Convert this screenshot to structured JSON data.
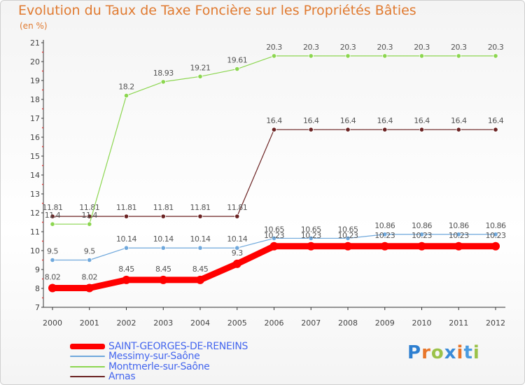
{
  "header": {
    "title": "Evolution du Taux de Taxe Foncière sur les Propriétés Bâties",
    "unit": "(en %)"
  },
  "logo": {
    "letters": [
      "P",
      "r",
      "o",
      "x",
      "i",
      "t",
      "i"
    ],
    "colors": [
      "#2e7fd0",
      "#e8762a",
      "#9bc24a",
      "#3a8bd8",
      "#e8762a",
      "#4a9be0",
      "#9bc24a"
    ]
  },
  "chart_data": {
    "type": "line",
    "title": "Evolution du Taux de Taxe Foncière sur les Propriétés Bâties",
    "ylabel": "(en %)",
    "xlabel": "",
    "x": [
      "2000",
      "2001",
      "2002",
      "2003",
      "2004",
      "2005",
      "2006",
      "2007",
      "2008",
      "2009",
      "2010",
      "2011",
      "2012"
    ],
    "ylim": [
      7,
      21
    ],
    "yticks": [
      "7",
      "8",
      "9",
      "10",
      "11",
      "12",
      "13",
      "14",
      "15",
      "16",
      "17",
      "18",
      "19",
      "20",
      "21"
    ],
    "series": [
      {
        "name": "Arnas",
        "color": "#6b2222",
        "values": [
          11.81,
          11.81,
          11.81,
          11.81,
          11.81,
          11.81,
          16.4,
          16.4,
          16.4,
          16.4,
          16.4,
          16.4,
          16.4
        ],
        "labels": [
          "11.81",
          "11.81",
          "11.81",
          "11.81",
          "11.81",
          "11.81",
          "16.4",
          "16.4",
          "16.4",
          "16.4",
          "16.4",
          "16.4",
          "16.4"
        ]
      },
      {
        "name": "Montmerle-sur-Saône",
        "color": "#8cd650",
        "values": [
          11.4,
          11.4,
          18.2,
          18.93,
          19.21,
          19.61,
          20.3,
          20.3,
          20.3,
          20.3,
          20.3,
          20.3,
          20.3
        ],
        "labels": [
          "11.4",
          "11.4",
          "18.2",
          "18.93",
          "19.21",
          "19.61",
          "20.3",
          "20.3",
          "20.3",
          "20.3",
          "20.3",
          "20.3",
          "20.3"
        ]
      },
      {
        "name": "Messimy-sur-Saône",
        "color": "#6fa8dc",
        "values": [
          9.5,
          9.5,
          10.14,
          10.14,
          10.14,
          10.14,
          10.65,
          10.65,
          10.65,
          10.86,
          10.86,
          10.86,
          10.86
        ],
        "labels": [
          "9.5",
          "9.5",
          "10.14",
          "10.14",
          "10.14",
          "10.14",
          "10.65",
          "10.65",
          "10.65",
          "10.86",
          "10.86",
          "10.86",
          "10.86"
        ]
      },
      {
        "name": "SAINT-GEORGES-DE-RENEINS",
        "color": "#ff0000",
        "values": [
          8.02,
          8.02,
          8.45,
          8.45,
          8.45,
          9.3,
          10.23,
          10.23,
          10.23,
          10.23,
          10.23,
          10.23,
          10.23
        ],
        "labels": [
          "8.02",
          "8.02",
          "8.45",
          "8.45",
          "8.45",
          "9.3",
          "10.23",
          "10.23",
          "10.23",
          "10.23",
          "10.23",
          "10.23",
          "10.23"
        ]
      }
    ],
    "legend": [
      "SAINT-GEORGES-DE-RENEINS",
      "Messimy-sur-Saône",
      "Montmerle-sur-Saône",
      "Arnas"
    ],
    "legend_position": "bottom-left"
  }
}
